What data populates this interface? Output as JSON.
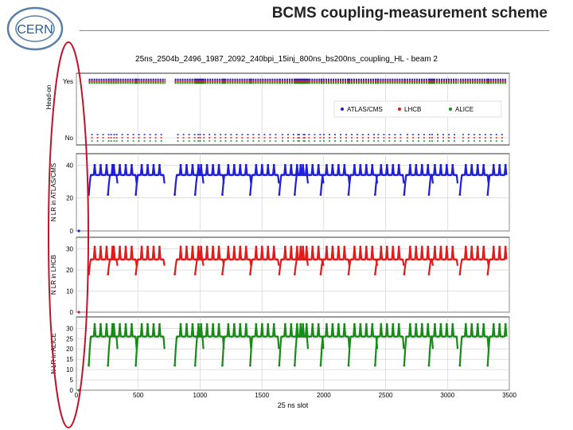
{
  "slide": {
    "title": "BCMS coupling-measurement scheme",
    "logo_text": "CERN"
  },
  "chart_data": {
    "type": "scatter",
    "title": "25ns_2504b_2496_1987_2092_240bpi_15inj_800ns_bs200ns_coupling_HL - beam 2",
    "xlabel": "25 ns slot",
    "xlim": [
      0,
      3500
    ],
    "xticks": [
      0,
      500,
      1000,
      1500,
      2000,
      2500,
      3000,
      3500
    ],
    "colors": {
      "atlas": "#1f1fd6",
      "lhcb": "#e01b1b",
      "alice": "#188a18"
    },
    "train_starts": [
      100,
      255,
      480,
      795,
      960,
      1180,
      1405,
      1640,
      1765,
      1975,
      2200,
      2415,
      2650,
      2850,
      3100,
      3325
    ],
    "train_length": 240,
    "panels": [
      {
        "id": "headon",
        "ylabel": "Head-on",
        "yticks": [
          "Yes",
          "No"
        ],
        "legend": [
          {
            "label": "ATLAS/CMS",
            "color": "#1f1fd6"
          },
          {
            "label": "LHCB",
            "color": "#e01b1b"
          },
          {
            "label": "ALICE",
            "color": "#188a18"
          }
        ]
      },
      {
        "id": "atlas",
        "ylabel": "N LR in ATLAS/CMS",
        "ylim": [
          0,
          45
        ],
        "yticks": [
          0,
          20,
          40
        ],
        "plateau": 34,
        "peak": 40,
        "edge": 22
      },
      {
        "id": "lhcb",
        "ylabel": "N LR in LHCB",
        "ylim": [
          0,
          34
        ],
        "yticks": [
          0,
          10,
          20,
          30
        ],
        "plateau": 25,
        "peak": 31,
        "edge": 18
      },
      {
        "id": "alice",
        "ylabel": "N LR in ALICE",
        "ylim": [
          0,
          34
        ],
        "yticks": [
          0,
          5,
          10,
          15,
          20,
          25,
          30
        ],
        "plateau": 26,
        "peak": 32,
        "edge": 12
      }
    ]
  }
}
